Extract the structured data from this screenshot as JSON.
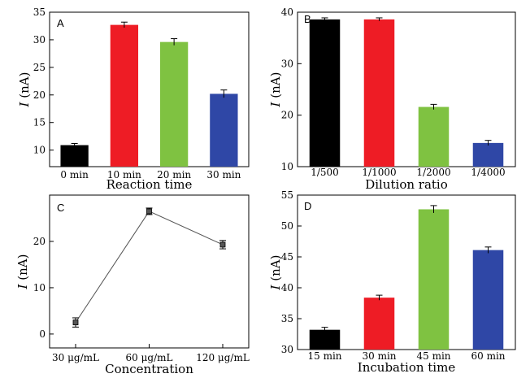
{
  "colors": {
    "black": "#000000",
    "red": "#ee1c25",
    "green": "#7fc241",
    "blue": "#2f47a6",
    "line": "#555555"
  },
  "chart_data": [
    {
      "panel": "A",
      "type": "bar",
      "categories": [
        "0 min",
        "10 min",
        "20 min",
        "30 min"
      ],
      "values": [
        10.9,
        32.7,
        29.6,
        20.2
      ],
      "errors": [
        0.3,
        0.5,
        0.6,
        0.7
      ],
      "bar_colors": [
        "black",
        "red",
        "green",
        "blue"
      ],
      "xlabel": "Reaction time",
      "ylabel_italic": "I",
      "ylabel_rest": " (nA)",
      "ylim": [
        7,
        35
      ],
      "yticks": [
        10,
        15,
        20,
        25,
        30,
        35
      ]
    },
    {
      "panel": "B",
      "type": "bar",
      "categories": [
        "1/500",
        "1/1000",
        "1/2000",
        "1/4000"
      ],
      "values": [
        38.6,
        38.6,
        21.6,
        14.6
      ],
      "errors": [
        0.3,
        0.3,
        0.5,
        0.5
      ],
      "bar_colors": [
        "black",
        "red",
        "green",
        "blue"
      ],
      "xlabel": "Dilution ratio",
      "ylabel_italic": "I",
      "ylabel_rest": " (nA)",
      "ylim": [
        10,
        40
      ],
      "yticks": [
        10,
        20,
        30,
        40
      ]
    },
    {
      "panel": "C",
      "type": "line",
      "categories": [
        "30 μg/mL",
        "60 μg/mL",
        "120 μg/mL"
      ],
      "values": [
        2.5,
        26.5,
        19.3
      ],
      "errors": [
        1.0,
        0.7,
        0.9
      ],
      "xlabel": "Concentration",
      "ylabel_italic": "I",
      "ylabel_rest": " (nA)",
      "ylim": [
        -3,
        30
      ],
      "yticks": [
        0,
        10,
        20
      ]
    },
    {
      "panel": "D",
      "type": "bar",
      "categories": [
        "15 min",
        "30 min",
        "45 min",
        "60 min"
      ],
      "values": [
        33.2,
        38.4,
        52.7,
        46.1
      ],
      "errors": [
        0.4,
        0.4,
        0.6,
        0.5
      ],
      "bar_colors": [
        "black",
        "red",
        "green",
        "blue"
      ],
      "xlabel": "Incubation time",
      "ylabel_italic": "I",
      "ylabel_rest": " (nA)",
      "ylim": [
        30,
        55
      ],
      "yticks": [
        30,
        35,
        40,
        45,
        50,
        55
      ]
    }
  ]
}
